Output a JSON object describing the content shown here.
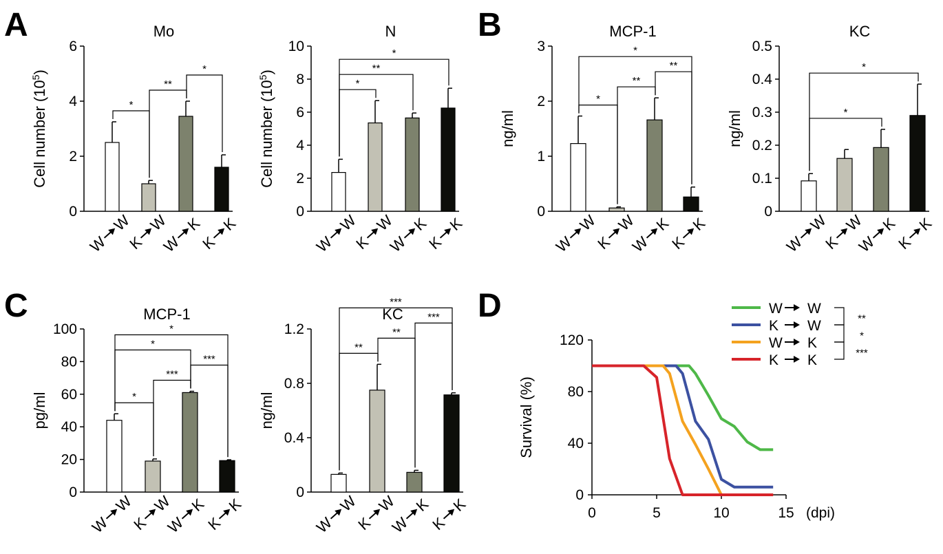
{
  "panel_letters": [
    "A",
    "B",
    "C",
    "D"
  ],
  "colors": {
    "W→W": "#ffffff",
    "K→W": "#c2c1b4",
    "W→K": "#7d826d",
    "K→K": "#0d0e0a"
  },
  "chart_data": [
    {
      "panel": "A",
      "type": "bar",
      "title": "Mo",
      "ylabel": "Cell number (10",
      "ylabel_sup": "5",
      "ylabel_end": ")",
      "ylim": [
        0,
        6
      ],
      "yticks": [
        0,
        2,
        4,
        6
      ],
      "categories": [
        "W→W",
        "K→W",
        "W→K",
        "K→K"
      ],
      "values": [
        2.5,
        1.0,
        3.45,
        1.6
      ],
      "errors": [
        0.75,
        0.12,
        0.55,
        0.45
      ],
      "comparisons": [
        {
          "a": 0,
          "b": 1,
          "label": "*"
        },
        {
          "a": 1,
          "b": 2,
          "label": "**"
        },
        {
          "a": 2,
          "b": 3,
          "label": "*"
        }
      ]
    },
    {
      "panel": "A",
      "type": "bar",
      "title": "N",
      "ylabel": "Cell number (10",
      "ylabel_sup": "5",
      "ylabel_end": ")",
      "ylim": [
        0,
        10
      ],
      "yticks": [
        0,
        2,
        4,
        6,
        8,
        10
      ],
      "categories": [
        "W→W",
        "K→W",
        "W→K",
        "K→K"
      ],
      "values": [
        2.35,
        5.35,
        5.65,
        6.25
      ],
      "errors": [
        0.8,
        1.35,
        0.3,
        1.2
      ],
      "comparisons": [
        {
          "a": 0,
          "b": 1,
          "label": "*"
        },
        {
          "a": 0,
          "b": 2,
          "label": "**"
        },
        {
          "a": 0,
          "b": 3,
          "label": "*"
        }
      ]
    },
    {
      "panel": "B",
      "type": "bar",
      "title": "MCP-1",
      "ylabel": "ng/ml",
      "ylim": [
        0,
        3
      ],
      "yticks": [
        0,
        1,
        2,
        3
      ],
      "categories": [
        "W→W",
        "K→W",
        "W→K",
        "K→K"
      ],
      "values": [
        1.23,
        0.06,
        1.66,
        0.26
      ],
      "errors": [
        0.5,
        0.02,
        0.4,
        0.18
      ],
      "comparisons": [
        {
          "a": 0,
          "b": 1,
          "label": "*"
        },
        {
          "a": 1,
          "b": 2,
          "label": "**"
        },
        {
          "a": 2,
          "b": 3,
          "label": "**"
        },
        {
          "a": 0,
          "b": 3,
          "label": "*"
        }
      ]
    },
    {
      "panel": "B",
      "type": "bar",
      "title": "KC",
      "ylabel": "ng/ml",
      "ylim": [
        0,
        0.5
      ],
      "yticks": [
        0,
        0.1,
        0.2,
        0.3,
        0.4,
        0.5
      ],
      "categories": [
        "W→W",
        "K→W",
        "W→K",
        "K→K"
      ],
      "values": [
        0.092,
        0.16,
        0.193,
        0.29
      ],
      "errors": [
        0.022,
        0.027,
        0.055,
        0.095
      ],
      "comparisons": [
        {
          "a": 0,
          "b": 2,
          "label": "*"
        },
        {
          "a": 0,
          "b": 3,
          "label": "*"
        }
      ]
    },
    {
      "panel": "C",
      "type": "bar",
      "title": "MCP-1",
      "ylabel": "pg/ml",
      "ylim": [
        0,
        100
      ],
      "yticks": [
        0,
        20,
        40,
        60,
        80,
        100
      ],
      "categories": [
        "W→W",
        "K→W",
        "W→K",
        "K→K"
      ],
      "values": [
        44,
        19,
        61,
        19.3
      ],
      "errors": [
        4,
        1.3,
        0.8,
        0.5
      ],
      "comparisons": [
        {
          "a": 0,
          "b": 1,
          "label": "*"
        },
        {
          "a": 1,
          "b": 2,
          "label": "***"
        },
        {
          "a": 2,
          "b": 3,
          "label": "***"
        },
        {
          "a": 0,
          "b": 2,
          "label": "*"
        },
        {
          "a": 0,
          "b": 3,
          "label": "*"
        }
      ]
    },
    {
      "panel": "C",
      "type": "bar",
      "title": "KC",
      "ylabel": "ng/ml",
      "ylim": [
        0,
        1.2
      ],
      "yticks": [
        0,
        0.4,
        0.8,
        1.2
      ],
      "categories": [
        "W→W",
        "K→W",
        "W→K",
        "K→K"
      ],
      "values": [
        0.13,
        0.75,
        0.145,
        0.715
      ],
      "errors": [
        0.01,
        0.19,
        0.015,
        0.015
      ],
      "comparisons": [
        {
          "a": 0,
          "b": 1,
          "label": "**"
        },
        {
          "a": 1,
          "b": 2,
          "label": "**"
        },
        {
          "a": 2,
          "b": 3,
          "label": "***"
        },
        {
          "a": 0,
          "b": 3,
          "label": "***"
        }
      ]
    },
    {
      "panel": "D",
      "type": "line",
      "step": false,
      "ylabel": "Survival (%)",
      "xlabel_unit": "(dpi)",
      "xlim": [
        0,
        15
      ],
      "xticks": [
        0,
        5,
        10,
        15
      ],
      "ylim": [
        0,
        120
      ],
      "yticks": [
        0,
        40,
        80,
        120
      ],
      "series": [
        {
          "name": "W → W",
          "color": "#4eb848",
          "x": [
            0,
            7,
            7.5,
            8,
            9,
            10,
            11,
            12,
            13,
            14
          ],
          "y": [
            100,
            100,
            100,
            94,
            77,
            59,
            53,
            41,
            35,
            35
          ]
        },
        {
          "name": "K → W",
          "color": "#3c51a1",
          "x": [
            0,
            6,
            6.5,
            7,
            8,
            9,
            10,
            11,
            12,
            14
          ],
          "y": [
            100,
            100,
            100,
            94,
            57,
            43,
            12,
            6,
            6,
            6
          ]
        },
        {
          "name": "W → K",
          "color": "#f4a21f",
          "x": [
            0,
            5,
            5.5,
            6,
            7,
            8,
            9,
            10,
            11,
            14
          ],
          "y": [
            100,
            100,
            100,
            94,
            57,
            39,
            20,
            0,
            0,
            0
          ]
        },
        {
          "name": "K → K",
          "color": "#d7242a",
          "x": [
            0,
            4,
            5,
            6,
            7,
            8,
            14
          ],
          "y": [
            100,
            100,
            91,
            28,
            0,
            0,
            0
          ]
        }
      ],
      "legend": "top-right",
      "comparisons": [
        {
          "a": 0,
          "b": 1,
          "label": "**"
        },
        {
          "a": 1,
          "b": 2,
          "label": "*"
        },
        {
          "a": 2,
          "b": 3,
          "label": "***"
        }
      ]
    }
  ]
}
